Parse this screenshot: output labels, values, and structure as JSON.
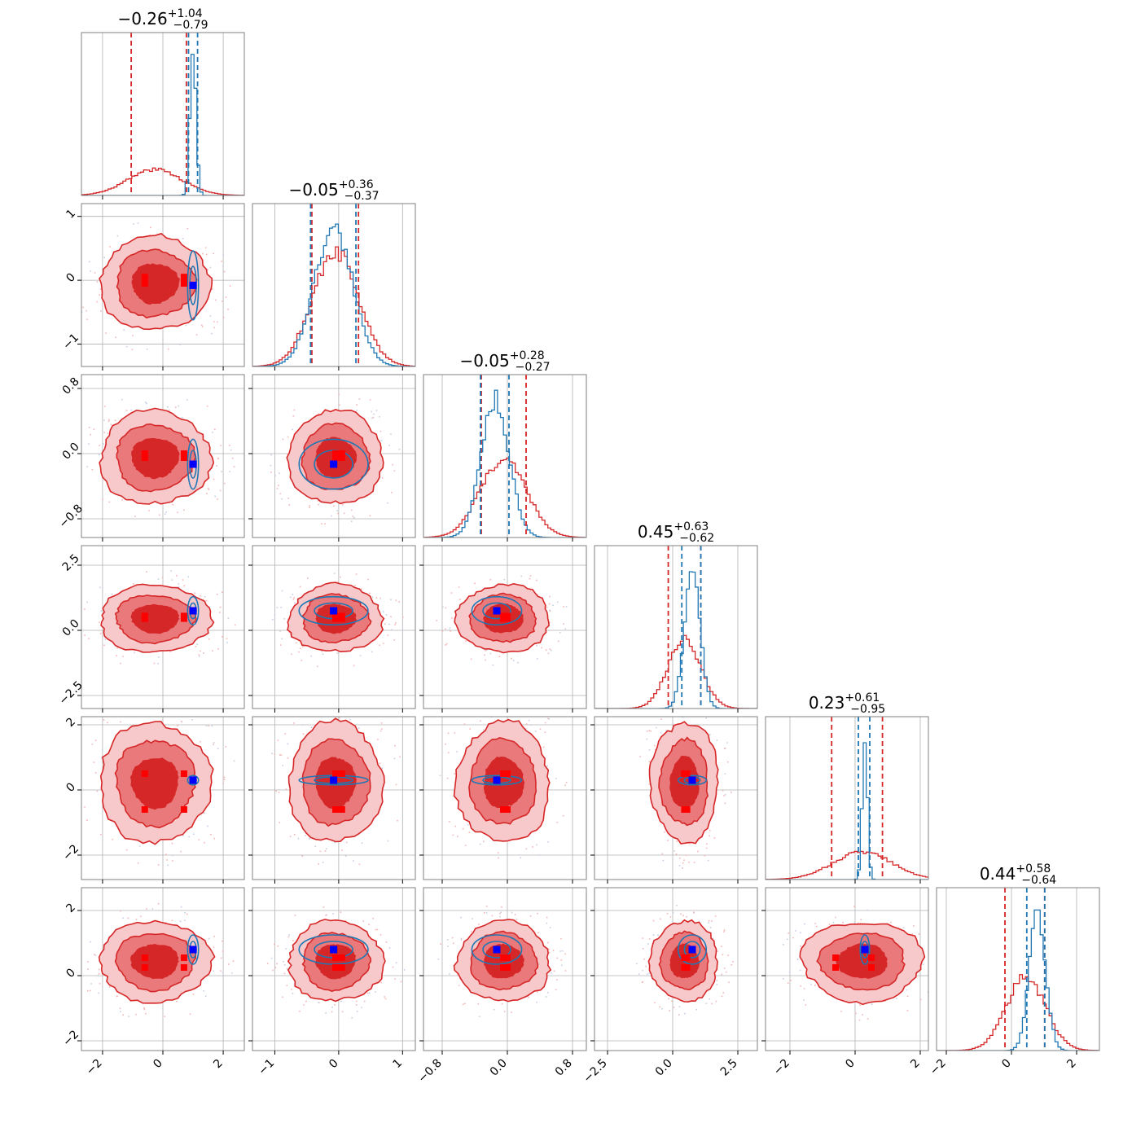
{
  "chart_data": {
    "type": "corner",
    "parameters": [
      {
        "title": {
          "median": "−0.26",
          "plus": "+1.04",
          "minus": "−0.79"
        },
        "ticks": [
          -2,
          0,
          2
        ],
        "tick_labels": [
          "−2",
          "0",
          "2"
        ],
        "range": [
          -2.7,
          2.7
        ],
        "red_quantiles": [
          -1.05,
          0.78
        ],
        "blue_quantiles": [
          0.85,
          1.15
        ],
        "red_hist": {
          "type": "gaussian",
          "mean": -0.26,
          "sd": 0.9,
          "peak": 0.16
        },
        "blue_hist": {
          "type": "gaussian",
          "mean": 1.0,
          "sd": 0.1,
          "peak": 0.9
        },
        "red_points": [
          -0.6,
          0.7
        ],
        "blue_point": 1.0
      },
      {
        "title": {
          "median": "−0.05",
          "plus": "+0.36",
          "minus": "−0.37"
        },
        "ticks": [
          -1,
          0,
          1
        ],
        "tick_labels": [
          "−1",
          "0",
          "1"
        ],
        "range": [
          -1.35,
          1.2
        ],
        "red_quantiles": [
          -0.42,
          0.31
        ],
        "blue_quantiles": [
          -0.44,
          0.27
        ],
        "red_hist": {
          "type": "gaussian",
          "mean": -0.05,
          "sd": 0.36,
          "peak": 0.7
        },
        "blue_hist": {
          "type": "gaussian",
          "mean": -0.08,
          "sd": 0.3,
          "peak": 0.85
        },
        "red_points": [
          -0.05,
          0.05
        ],
        "blue_point": -0.08
      },
      {
        "title": {
          "median": "−0.05",
          "plus": "+0.28",
          "minus": "−0.27"
        },
        "ticks": [
          -0.8,
          0.0,
          0.8
        ],
        "tick_labels": [
          "−0.8",
          "0.0",
          "0.8"
        ],
        "range": [
          -1.03,
          0.97
        ],
        "red_quantiles": [
          -0.32,
          0.23
        ],
        "blue_quantiles": [
          -0.33,
          0.02
        ],
        "red_hist": {
          "type": "gaussian",
          "mean": -0.05,
          "sd": 0.28,
          "peak": 0.48
        },
        "blue_hist": {
          "type": "gaussian",
          "mean": -0.15,
          "sd": 0.17,
          "peak": 0.85
        },
        "red_points": [
          -0.05,
          0.0
        ],
        "blue_point": -0.13
      },
      {
        "title": {
          "median": "0.45",
          "plus": "+0.63",
          "minus": "−0.62"
        },
        "ticks": [
          -2.5,
          0.0,
          2.5
        ],
        "tick_labels": [
          "−2.5",
          "0.0",
          "2.5"
        ],
        "range": [
          -3.0,
          3.25
        ],
        "red_quantiles": [
          -0.17,
          1.08
        ],
        "blue_quantiles": [
          0.35,
          1.08
        ],
        "red_hist": {
          "type": "gaussian",
          "mean": 0.45,
          "sd": 0.63,
          "peak": 0.42
        },
        "blue_hist": {
          "type": "gaussian",
          "mean": 0.75,
          "sd": 0.3,
          "peak": 0.85
        },
        "red_points": [
          0.45,
          0.55
        ],
        "blue_point": 0.75
      },
      {
        "title": {
          "median": "0.23",
          "plus": "+0.61",
          "minus": "−0.95"
        },
        "ticks": [
          -2,
          0,
          2
        ],
        "tick_labels": [
          "−2",
          "0",
          "2"
        ],
        "range": [
          -2.75,
          2.25
        ],
        "red_quantiles": [
          -0.72,
          0.84
        ],
        "blue_quantiles": [
          0.1,
          0.45
        ],
        "red_hist": {
          "type": "gaussian",
          "mean": 0.23,
          "sd": 0.9,
          "peak": 0.17
        },
        "blue_hist": {
          "type": "gaussian",
          "mean": 0.3,
          "sd": 0.08,
          "peak": 0.9
        },
        "red_points": [
          -0.6,
          0.5
        ],
        "blue_point": 0.3
      },
      {
        "title": {
          "median": "0.44",
          "plus": "+0.58",
          "minus": "−0.64"
        },
        "ticks": [
          -2,
          0,
          2
        ],
        "tick_labels": [
          "−2",
          "0",
          "2"
        ],
        "range": [
          -2.3,
          2.7
        ],
        "red_quantiles": [
          -0.2,
          1.02
        ],
        "blue_quantiles": [
          0.47,
          1.02
        ],
        "red_hist": {
          "type": "gaussian",
          "mean": 0.44,
          "sd": 0.6,
          "peak": 0.45
        },
        "blue_hist": {
          "type": "gaussian",
          "mean": 0.8,
          "sd": 0.25,
          "peak": 0.85
        },
        "red_points": [
          0.25,
          0.55
        ],
        "blue_point": 0.8
      }
    ],
    "series": [
      {
        "color": "#d62728",
        "fill_levels": [
          "#f7c9ca",
          "#e9797b",
          "#d62728"
        ]
      },
      {
        "color": "#1f77b4"
      }
    ],
    "red_marker_color": "#ff0000",
    "blue_marker_color": "#0000ff",
    "grid": true
  }
}
